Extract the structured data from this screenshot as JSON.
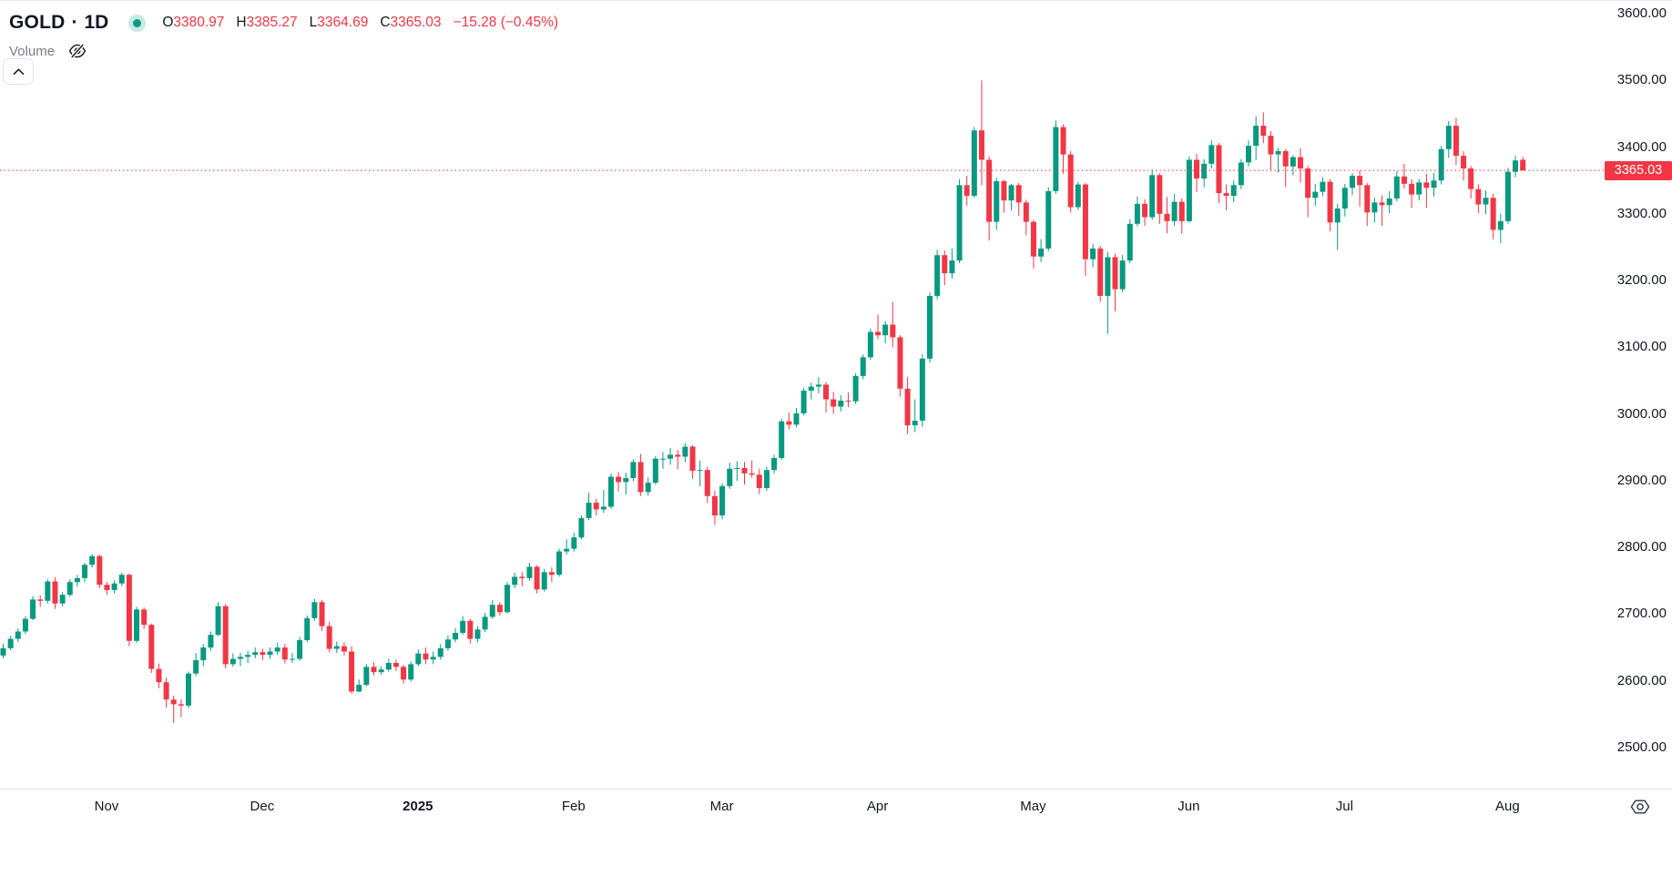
{
  "header": {
    "symbol": "GOLD",
    "separator": "·",
    "interval": "1D",
    "ohlc": {
      "o_label": "O",
      "o": "3380.97",
      "h_label": "H",
      "h": "3385.27",
      "l_label": "L",
      "l": "3364.69",
      "c_label": "C",
      "c": "3365.03",
      "change": "−15.28 (−0.45%)"
    },
    "indicator": {
      "name": "Volume",
      "visibility_icon": "eye-off-icon"
    }
  },
  "colors": {
    "up": "#089981",
    "down": "#f23645",
    "text": "#131722",
    "muted_text": "#787b86",
    "border": "#e0e3eb",
    "background": "#ffffff",
    "price_line": "#f23645",
    "price_tag_bg": "#f23645",
    "price_tag_text": "#ffffff"
  },
  "price_axis": {
    "ticks": [
      "3600.00",
      "3500.00",
      "3400.00",
      "3300.00",
      "3200.00",
      "3100.00",
      "3000.00",
      "2900.00",
      "2800.00",
      "2700.00",
      "2600.00",
      "2500.00"
    ],
    "last_price_label": "3365.03"
  },
  "time_axis": {
    "labels": [
      {
        "text": "Nov",
        "index": 14,
        "bold": false
      },
      {
        "text": "Dec",
        "index": 35,
        "bold": false
      },
      {
        "text": "2025",
        "index": 56,
        "bold": true
      },
      {
        "text": "Feb",
        "index": 77,
        "bold": false
      },
      {
        "text": "Mar",
        "index": 97,
        "bold": false
      },
      {
        "text": "Apr",
        "index": 118,
        "bold": false
      },
      {
        "text": "May",
        "index": 139,
        "bold": false
      },
      {
        "text": "Jun",
        "index": 160,
        "bold": false
      },
      {
        "text": "Jul",
        "index": 181,
        "bold": false
      },
      {
        "text": "Aug",
        "index": 203,
        "bold": false
      }
    ]
  },
  "footer": {
    "settings_icon": "settings-icon"
  },
  "chart_data": {
    "type": "candlestick",
    "symbol": "GOLD",
    "interval": "1D",
    "title": "GOLD daily candlestick chart, Oct 2024 – Aug 2025",
    "ylim": [
      2438,
      3620
    ],
    "grid": false,
    "last_price": 3365.03,
    "last_change": -15.28,
    "last_change_pct": -0.45,
    "candles_format": [
      "open",
      "high",
      "low",
      "close"
    ],
    "candles": [
      [
        2638,
        2656,
        2634,
        2649
      ],
      [
        2649,
        2668,
        2646,
        2663
      ],
      [
        2663,
        2679,
        2658,
        2674
      ],
      [
        2674,
        2697,
        2670,
        2693
      ],
      [
        2693,
        2727,
        2691,
        2722
      ],
      [
        2722,
        2728,
        2711,
        2720
      ],
      [
        2720,
        2752,
        2716,
        2749
      ],
      [
        2749,
        2755,
        2708,
        2716
      ],
      [
        2716,
        2733,
        2712,
        2729
      ],
      [
        2729,
        2752,
        2726,
        2748
      ],
      [
        2748,
        2759,
        2741,
        2754
      ],
      [
        2754,
        2777,
        2748,
        2774
      ],
      [
        2774,
        2790,
        2770,
        2787
      ],
      [
        2787,
        2789,
        2739,
        2744
      ],
      [
        2744,
        2748,
        2729,
        2736
      ],
      [
        2736,
        2751,
        2731,
        2746
      ],
      [
        2746,
        2762,
        2742,
        2759
      ],
      [
        2759,
        2761,
        2652,
        2660
      ],
      [
        2660,
        2711,
        2657,
        2707
      ],
      [
        2707,
        2710,
        2678,
        2684
      ],
      [
        2684,
        2686,
        2612,
        2618
      ],
      [
        2618,
        2626,
        2589,
        2598
      ],
      [
        2598,
        2605,
        2560,
        2572
      ],
      [
        2572,
        2578,
        2537,
        2565
      ],
      [
        2565,
        2572,
        2546,
        2563
      ],
      [
        2563,
        2614,
        2559,
        2611
      ],
      [
        2611,
        2642,
        2607,
        2631
      ],
      [
        2631,
        2655,
        2622,
        2650
      ],
      [
        2650,
        2674,
        2645,
        2669
      ],
      [
        2669,
        2718,
        2667,
        2712
      ],
      [
        2712,
        2715,
        2619,
        2625
      ],
      [
        2625,
        2641,
        2621,
        2633
      ],
      [
        2633,
        2642,
        2622,
        2636
      ],
      [
        2636,
        2645,
        2627,
        2639
      ],
      [
        2639,
        2650,
        2634,
        2643
      ],
      [
        2643,
        2648,
        2631,
        2639
      ],
      [
        2639,
        2650,
        2633,
        2644
      ],
      [
        2644,
        2657,
        2639,
        2650
      ],
      [
        2650,
        2655,
        2626,
        2632
      ],
      [
        2632,
        2642,
        2627,
        2633
      ],
      [
        2633,
        2666,
        2630,
        2661
      ],
      [
        2661,
        2698,
        2658,
        2694
      ],
      [
        2694,
        2723,
        2690,
        2718
      ],
      [
        2718,
        2721,
        2675,
        2682
      ],
      [
        2682,
        2689,
        2643,
        2648
      ],
      [
        2648,
        2659,
        2642,
        2652
      ],
      [
        2652,
        2658,
        2638,
        2644
      ],
      [
        2644,
        2652,
        2581,
        2584
      ],
      [
        2584,
        2602,
        2583,
        2594
      ],
      [
        2594,
        2625,
        2592,
        2621
      ],
      [
        2621,
        2628,
        2608,
        2613
      ],
      [
        2613,
        2622,
        2609,
        2617
      ],
      [
        2617,
        2633,
        2614,
        2627
      ],
      [
        2627,
        2632,
        2615,
        2621
      ],
      [
        2621,
        2624,
        2596,
        2602
      ],
      [
        2602,
        2629,
        2599,
        2625
      ],
      [
        2625,
        2647,
        2622,
        2641
      ],
      [
        2641,
        2650,
        2625,
        2632
      ],
      [
        2632,
        2644,
        2625,
        2636
      ],
      [
        2636,
        2655,
        2632,
        2649
      ],
      [
        2649,
        2668,
        2645,
        2662
      ],
      [
        2662,
        2679,
        2658,
        2672
      ],
      [
        2672,
        2697,
        2669,
        2690
      ],
      [
        2690,
        2693,
        2656,
        2663
      ],
      [
        2663,
        2682,
        2658,
        2677
      ],
      [
        2677,
        2702,
        2673,
        2696
      ],
      [
        2696,
        2721,
        2693,
        2714
      ],
      [
        2714,
        2718,
        2698,
        2703
      ],
      [
        2703,
        2748,
        2701,
        2744
      ],
      [
        2744,
        2762,
        2739,
        2756
      ],
      [
        2756,
        2763,
        2742,
        2754
      ],
      [
        2754,
        2777,
        2750,
        2771
      ],
      [
        2771,
        2773,
        2731,
        2737
      ],
      [
        2737,
        2768,
        2734,
        2763
      ],
      [
        2763,
        2770,
        2748,
        2759
      ],
      [
        2759,
        2798,
        2756,
        2794
      ],
      [
        2794,
        2812,
        2789,
        2798
      ],
      [
        2798,
        2822,
        2794,
        2815
      ],
      [
        2815,
        2848,
        2812,
        2844
      ],
      [
        2844,
        2882,
        2841,
        2867
      ],
      [
        2867,
        2873,
        2848,
        2857
      ],
      [
        2857,
        2886,
        2852,
        2861
      ],
      [
        2861,
        2911,
        2858,
        2906
      ],
      [
        2906,
        2913,
        2884,
        2898
      ],
      [
        2898,
        2912,
        2879,
        2904
      ],
      [
        2904,
        2932,
        2899,
        2928
      ],
      [
        2928,
        2940,
        2877,
        2883
      ],
      [
        2883,
        2905,
        2878,
        2897
      ],
      [
        2897,
        2937,
        2894,
        2933
      ],
      [
        2933,
        2943,
        2918,
        2933
      ],
      [
        2933,
        2949,
        2924,
        2939
      ],
      [
        2939,
        2946,
        2917,
        2936
      ],
      [
        2936,
        2956,
        2928,
        2951
      ],
      [
        2951,
        2953,
        2903,
        2915
      ],
      [
        2915,
        2930,
        2892,
        2916
      ],
      [
        2916,
        2921,
        2867,
        2877
      ],
      [
        2877,
        2885,
        2834,
        2848
      ],
      [
        2848,
        2896,
        2842,
        2892
      ],
      [
        2892,
        2927,
        2888,
        2918
      ],
      [
        2918,
        2929,
        2900,
        2919
      ],
      [
        2919,
        2928,
        2894,
        2911
      ],
      [
        2911,
        2930,
        2905,
        2909
      ],
      [
        2909,
        2918,
        2880,
        2889
      ],
      [
        2889,
        2921,
        2885,
        2916
      ],
      [
        2916,
        2939,
        2911,
        2934
      ],
      [
        2934,
        2993,
        2931,
        2989
      ],
      [
        2989,
        3002,
        2977,
        2984
      ],
      [
        2984,
        3009,
        2980,
        3001
      ],
      [
        3001,
        3039,
        2998,
        3035
      ],
      [
        3035,
        3047,
        3022,
        3041
      ],
      [
        3041,
        3055,
        3031,
        3044
      ],
      [
        3044,
        3048,
        3002,
        3022
      ],
      [
        3022,
        3033,
        3000,
        3011
      ],
      [
        3011,
        3028,
        3004,
        3020
      ],
      [
        3020,
        3032,
        3010,
        3019
      ],
      [
        3019,
        3061,
        3015,
        3057
      ],
      [
        3057,
        3089,
        3052,
        3085
      ],
      [
        3085,
        3128,
        3081,
        3123
      ],
      [
        3123,
        3149,
        3112,
        3118
      ],
      [
        3118,
        3139,
        3106,
        3134
      ],
      [
        3134,
        3168,
        3100,
        3115
      ],
      [
        3115,
        3118,
        3026,
        3038
      ],
      [
        3038,
        3055,
        2970,
        2983
      ],
      [
        2983,
        3022,
        2973,
        2990
      ],
      [
        2990,
        3090,
        2981,
        3083
      ],
      [
        3083,
        3182,
        3077,
        3177
      ],
      [
        3177,
        3246,
        3172,
        3238
      ],
      [
        3238,
        3245,
        3193,
        3211
      ],
      [
        3211,
        3248,
        3203,
        3230
      ],
      [
        3230,
        3352,
        3226,
        3343
      ],
      [
        3343,
        3357,
        3312,
        3327
      ],
      [
        3327,
        3430,
        3324,
        3425
      ],
      [
        3425,
        3500,
        3343,
        3381
      ],
      [
        3381,
        3386,
        3260,
        3288
      ],
      [
        3288,
        3354,
        3276,
        3349
      ],
      [
        3349,
        3351,
        3302,
        3320
      ],
      [
        3320,
        3345,
        3305,
        3343
      ],
      [
        3343,
        3346,
        3297,
        3317
      ],
      [
        3317,
        3321,
        3268,
        3288
      ],
      [
        3288,
        3291,
        3218,
        3236
      ],
      [
        3236,
        3262,
        3228,
        3248
      ],
      [
        3248,
        3340,
        3244,
        3334
      ],
      [
        3334,
        3440,
        3330,
        3430
      ],
      [
        3430,
        3434,
        3360,
        3389
      ],
      [
        3389,
        3394,
        3302,
        3310
      ],
      [
        3310,
        3348,
        3306,
        3344
      ],
      [
        3344,
        3346,
        3207,
        3232
      ],
      [
        3232,
        3255,
        3220,
        3248
      ],
      [
        3248,
        3252,
        3168,
        3177
      ],
      [
        3177,
        3243,
        3120,
        3235
      ],
      [
        3235,
        3240,
        3154,
        3187
      ],
      [
        3187,
        3238,
        3183,
        3230
      ],
      [
        3230,
        3292,
        3226,
        3285
      ],
      [
        3285,
        3326,
        3281,
        3315
      ],
      [
        3315,
        3322,
        3282,
        3295
      ],
      [
        3295,
        3366,
        3291,
        3358
      ],
      [
        3358,
        3361,
        3285,
        3300
      ],
      [
        3300,
        3325,
        3271,
        3289
      ],
      [
        3289,
        3330,
        3282,
        3318
      ],
      [
        3318,
        3323,
        3270,
        3289
      ],
      [
        3289,
        3386,
        3287,
        3381
      ],
      [
        3381,
        3390,
        3333,
        3353
      ],
      [
        3353,
        3382,
        3340,
        3375
      ],
      [
        3375,
        3410,
        3368,
        3403
      ],
      [
        3403,
        3406,
        3316,
        3331
      ],
      [
        3331,
        3344,
        3305,
        3327
      ],
      [
        3327,
        3350,
        3318,
        3343
      ],
      [
        3343,
        3382,
        3337,
        3377
      ],
      [
        3377,
        3410,
        3371,
        3402
      ],
      [
        3402,
        3446,
        3381,
        3432
      ],
      [
        3432,
        3452,
        3406,
        3417
      ],
      [
        3417,
        3424,
        3366,
        3389
      ],
      [
        3389,
        3399,
        3362,
        3394
      ],
      [
        3394,
        3397,
        3340,
        3371
      ],
      [
        3371,
        3388,
        3358,
        3385
      ],
      [
        3385,
        3398,
        3347,
        3368
      ],
      [
        3368,
        3372,
        3295,
        3324
      ],
      [
        3324,
        3345,
        3312,
        3333
      ],
      [
        3333,
        3355,
        3326,
        3348
      ],
      [
        3348,
        3352,
        3274,
        3287
      ],
      [
        3287,
        3315,
        3246,
        3308
      ],
      [
        3308,
        3345,
        3296,
        3339
      ],
      [
        3339,
        3361,
        3328,
        3357
      ],
      [
        3357,
        3365,
        3311,
        3343
      ],
      [
        3343,
        3346,
        3282,
        3302
      ],
      [
        3302,
        3324,
        3287,
        3317
      ],
      [
        3317,
        3328,
        3282,
        3313
      ],
      [
        3313,
        3334,
        3301,
        3323
      ],
      [
        3323,
        3364,
        3319,
        3356
      ],
      [
        3356,
        3375,
        3338,
        3345
      ],
      [
        3345,
        3352,
        3309,
        3329
      ],
      [
        3329,
        3352,
        3320,
        3347
      ],
      [
        3347,
        3360,
        3309,
        3339
      ],
      [
        3339,
        3361,
        3326,
        3350
      ],
      [
        3350,
        3402,
        3344,
        3397
      ],
      [
        3397,
        3439,
        3384,
        3432
      ],
      [
        3432,
        3444,
        3373,
        3387
      ],
      [
        3387,
        3394,
        3350,
        3368
      ],
      [
        3368,
        3372,
        3323,
        3337
      ],
      [
        3337,
        3344,
        3301,
        3314
      ],
      [
        3314,
        3335,
        3300,
        3324
      ],
      [
        3324,
        3330,
        3262,
        3276
      ],
      [
        3276,
        3300,
        3256,
        3289
      ],
      [
        3289,
        3369,
        3285,
        3363
      ],
      [
        3363,
        3387,
        3355,
        3380
      ],
      [
        3380.97,
        3385.27,
        3364.69,
        3365.03
      ]
    ]
  }
}
